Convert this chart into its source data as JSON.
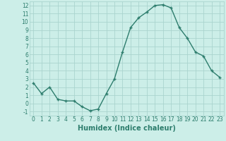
{
  "x": [
    0,
    1,
    2,
    3,
    4,
    5,
    6,
    7,
    8,
    9,
    10,
    11,
    12,
    13,
    14,
    15,
    16,
    17,
    18,
    19,
    20,
    21,
    22,
    23
  ],
  "y": [
    2.5,
    1.2,
    2.0,
    0.5,
    0.3,
    0.3,
    -0.4,
    -0.9,
    -0.7,
    1.2,
    3.0,
    6.3,
    9.3,
    10.5,
    11.2,
    12.0,
    12.1,
    11.7,
    9.3,
    8.0,
    6.3,
    5.8,
    4.0,
    3.2
  ],
  "xlabel": "Humidex (Indice chaleur)",
  "line_color": "#2d7d6d",
  "marker": "+",
  "marker_size": 3.5,
  "marker_lw": 1.0,
  "bg_color": "#cceee8",
  "grid_color": "#aad4ce",
  "xlim": [
    -0.5,
    23.5
  ],
  "ylim": [
    -1.5,
    12.5
  ],
  "yticks": [
    -1,
    0,
    1,
    2,
    3,
    4,
    5,
    6,
    7,
    8,
    9,
    10,
    11,
    12
  ],
  "xticks": [
    0,
    1,
    2,
    3,
    4,
    5,
    6,
    7,
    8,
    9,
    10,
    11,
    12,
    13,
    14,
    15,
    16,
    17,
    18,
    19,
    20,
    21,
    22,
    23
  ],
  "tick_fontsize": 5.5,
  "xlabel_fontsize": 7.0,
  "linewidth": 1.0
}
